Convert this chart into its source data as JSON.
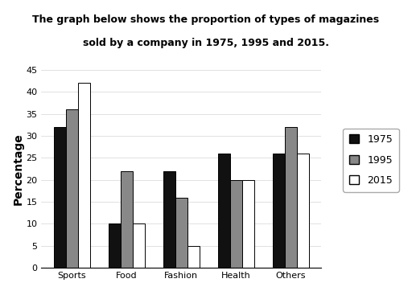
{
  "title_line1": "The graph below shows the proportion of types of magazines",
  "title_line2": "sold by a company in 1975, 1995 and 2015.",
  "categories": [
    "Sports",
    "Food",
    "Fashion",
    "Health",
    "Others"
  ],
  "series": {
    "1975": [
      32,
      10,
      22,
      26,
      26
    ],
    "1995": [
      36,
      22,
      16,
      20,
      32
    ],
    "2015": [
      42,
      10,
      5,
      20,
      26
    ]
  },
  "colors": {
    "1975": "#111111",
    "1995": "#888888",
    "2015": "#ffffff"
  },
  "bar_edge_color": "#000000",
  "ylabel": "Percentage",
  "ylim": [
    0,
    45
  ],
  "yticks": [
    0,
    5,
    10,
    15,
    20,
    25,
    30,
    35,
    40,
    45
  ],
  "legend_labels": [
    "1975",
    "1995",
    "2015"
  ],
  "background_color": "#ffffff",
  "title_fontsize": 9,
  "axis_label_fontsize": 10,
  "tick_fontsize": 8,
  "legend_fontsize": 9,
  "bar_width": 0.22,
  "grid_color": "#aaaaaa",
  "grid_linestyle": "-",
  "grid_linewidth": 0.5,
  "grid_alpha": 0.5
}
